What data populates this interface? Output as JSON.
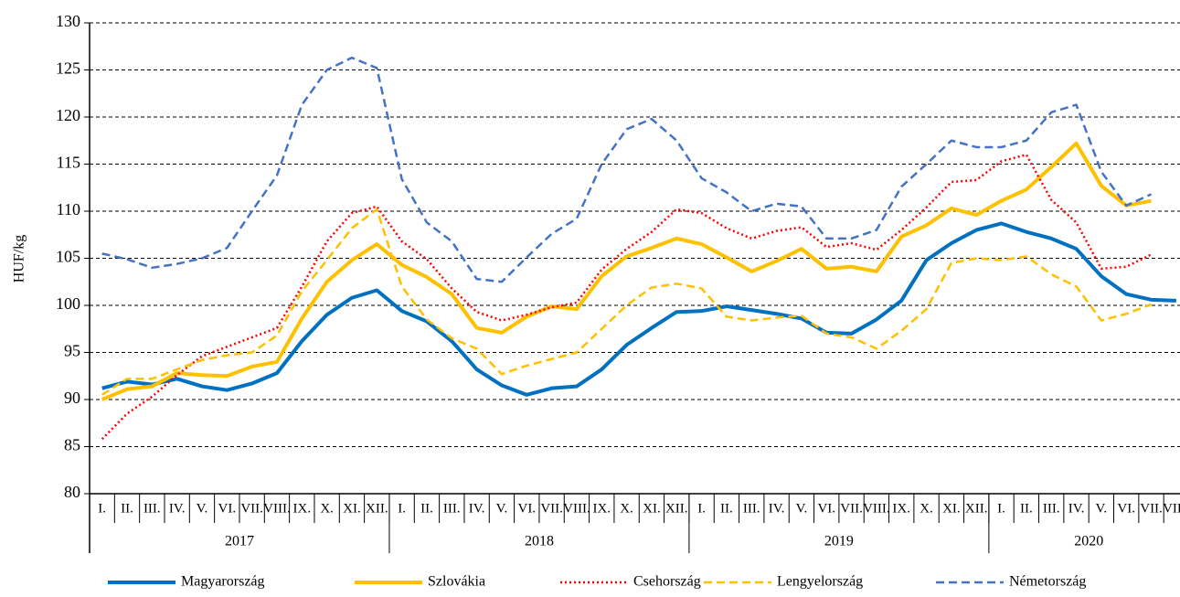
{
  "chart_data": {
    "type": "line",
    "y_label": "HUF/kg",
    "category_groups": [
      {
        "label": "2017",
        "categories": [
          "I.",
          "II.",
          "III.",
          "IV.",
          "V.",
          "VI.",
          "VII.",
          "VIII.",
          "IX.",
          "X.",
          "XI.",
          "XII."
        ]
      },
      {
        "label": "2018",
        "categories": [
          "I.",
          "II.",
          "III.",
          "IV.",
          "V.",
          "VI.",
          "VII.",
          "VIII.",
          "IX.",
          "X.",
          "XI.",
          "XII."
        ]
      },
      {
        "label": "2019",
        "categories": [
          "I.",
          "II.",
          "III.",
          "IV.",
          "V.",
          "VI.",
          "VII.",
          "VIII.",
          "IX.",
          "X.",
          "XI.",
          "XII."
        ]
      },
      {
        "label": "2020",
        "categories": [
          "I.",
          "II.",
          "III.",
          "IV.",
          "V.",
          "VI.",
          "VII.",
          "VIII."
        ]
      }
    ],
    "ylim": [
      80,
      130
    ],
    "yticks": [
      80,
      85,
      90,
      95,
      100,
      105,
      110,
      115,
      120,
      125,
      130
    ],
    "grid": true,
    "legend": "bottom",
    "series": [
      {
        "name": "Magyarország",
        "color": "#0070c0",
        "dash": "solid",
        "values": [
          91.2,
          91.9,
          91.6,
          92.2,
          91.4,
          91.0,
          91.7,
          92.8,
          96.2,
          99.0,
          100.8,
          101.6,
          99.4,
          98.3,
          96.2,
          93.2,
          91.5,
          90.5,
          91.2,
          91.4,
          93.2,
          95.8,
          97.6,
          99.3,
          99.4,
          99.9,
          99.5,
          99.1,
          98.6,
          97.1,
          97.0,
          98.5,
          100.5,
          104.8,
          106.6,
          108.0,
          108.7,
          107.8,
          107.1,
          106.0,
          103.1,
          101.2,
          100.6,
          100.5
        ]
      },
      {
        "name": "Szlovákia",
        "color": "#ffc000",
        "dash": "solid",
        "values": [
          90.0,
          91.1,
          91.4,
          92.8,
          92.6,
          92.5,
          93.5,
          94.0,
          98.6,
          102.5,
          104.8,
          106.5,
          104.3,
          103.0,
          101.2,
          97.6,
          97.1,
          98.8,
          99.9,
          99.6,
          103.1,
          105.2,
          106.1,
          107.1,
          106.5,
          105.1,
          103.6,
          104.7,
          106.0,
          103.9,
          104.1,
          103.6,
          107.3,
          108.5,
          110.3,
          109.6,
          111.1,
          112.3,
          114.7,
          117.2,
          112.7,
          110.6,
          111.1,
          null
        ]
      },
      {
        "name": "Csehország",
        "color": "#ff0000",
        "dash": "dotted",
        "values": [
          85.8,
          88.5,
          90.3,
          92.6,
          94.6,
          95.6,
          96.6,
          97.6,
          102.0,
          106.8,
          109.8,
          110.5,
          106.8,
          104.9,
          101.8,
          99.3,
          98.4,
          99.0,
          99.8,
          100.3,
          103.8,
          106.0,
          107.8,
          110.2,
          109.8,
          108.2,
          107.1,
          107.9,
          108.3,
          106.2,
          106.6,
          105.9,
          108.0,
          110.4,
          113.1,
          113.3,
          115.3,
          116.0,
          111.2,
          108.8,
          103.9,
          104.1,
          105.4,
          null
        ]
      },
      {
        "name": "Lengyelország",
        "color": "#ffc000",
        "dash": "dashed",
        "values": [
          90.5,
          92.2,
          92.2,
          93.2,
          94.2,
          94.7,
          95.0,
          96.8,
          101.5,
          104.8,
          108.2,
          110.2,
          102.0,
          98.5,
          96.5,
          95.4,
          92.7,
          93.6,
          94.3,
          95.0,
          97.5,
          100.0,
          101.9,
          102.3,
          101.8,
          98.8,
          98.4,
          98.7,
          98.9,
          97.0,
          96.6,
          95.4,
          97.3,
          99.6,
          104.5,
          105.0,
          104.8,
          105.2,
          103.3,
          102.0,
          98.4,
          99.1,
          100.1,
          null
        ]
      },
      {
        "name": "Németország",
        "color": "#4472c4",
        "dash": "dashed",
        "values": [
          105.5,
          104.9,
          104.0,
          104.4,
          105.0,
          106.1,
          110.0,
          113.8,
          121.3,
          125.0,
          126.3,
          125.2,
          113.4,
          108.8,
          106.8,
          102.8,
          102.5,
          105.1,
          107.6,
          109.2,
          115.0,
          118.7,
          119.8,
          117.5,
          113.5,
          112.0,
          110.0,
          110.8,
          110.5,
          107.1,
          107.1,
          108.0,
          112.6,
          115.0,
          117.5,
          116.8,
          116.8,
          117.5,
          120.5,
          121.3,
          114.2,
          110.6,
          111.8,
          null
        ]
      }
    ]
  }
}
